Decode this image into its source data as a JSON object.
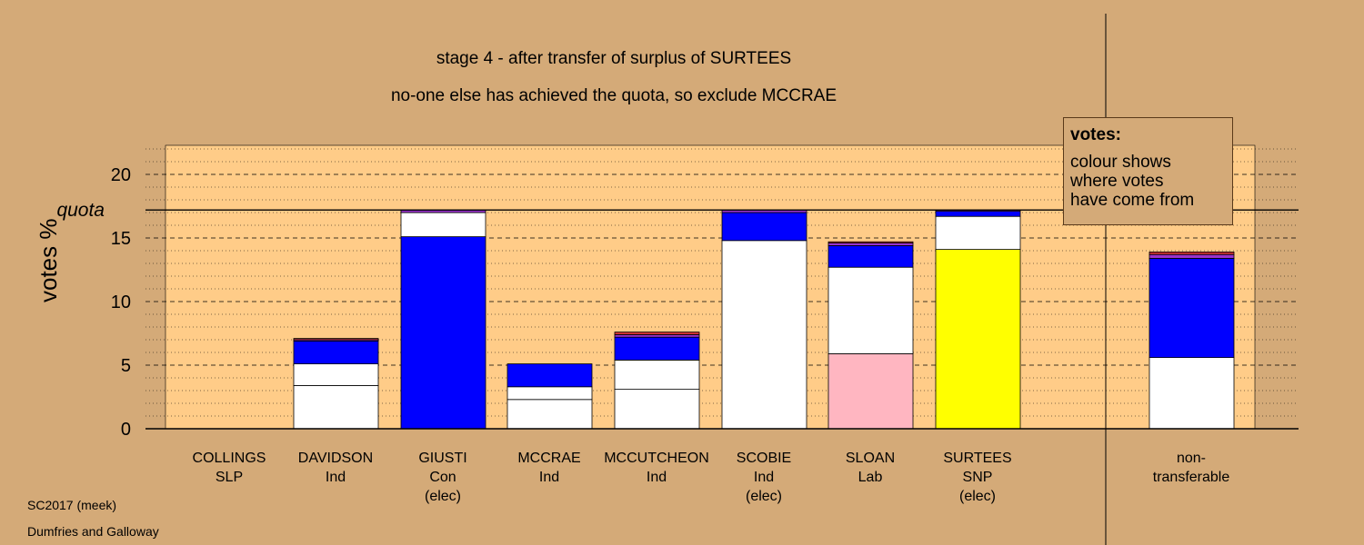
{
  "titles": {
    "line1": "stage 4 - after transfer of surplus of SURTEES",
    "line2": "no-one else has achieved the quota, so exclude MCCRAE"
  },
  "footer": {
    "line1": "SC2017 (meek)",
    "line2": "Dumfries and Galloway"
  },
  "legend": {
    "title": "votes:",
    "body_lines": [
      "colour shows",
      "where votes",
      "have come from"
    ]
  },
  "colors": {
    "background": "#d4aa78",
    "plot_background": "#ffcc88",
    "Ind": "#ffffff",
    "Con": "#0000ff",
    "Lab": "#ffb6c1",
    "SNP": "#ffff00",
    "SLP": "#cc3333",
    "purple": "#9933cc",
    "red": "#cc3333"
  },
  "candidates": [
    {
      "name": "COLLINGS",
      "party": "SLP",
      "note": ""
    },
    {
      "name": "DAVIDSON",
      "party": "Ind",
      "note": ""
    },
    {
      "name": "GIUSTI",
      "party": "Con",
      "note": "(elec)"
    },
    {
      "name": "MCCRAE",
      "party": "Ind",
      "note": ""
    },
    {
      "name": "MCCUTCHEON",
      "party": "Ind",
      "note": ""
    },
    {
      "name": "SCOBIE",
      "party": "Ind",
      "note": "(elec)"
    },
    {
      "name": "SLOAN",
      "party": "Lab",
      "note": ""
    },
    {
      "name": "SURTEES",
      "party": "SNP",
      "note": "(elec)"
    },
    {
      "name": "non-",
      "party": "transferable",
      "note": ""
    }
  ],
  "chart_data": {
    "type": "bar",
    "stacked": true,
    "ylabel": "votes %",
    "ylim": [
      0,
      22.5
    ],
    "yticks": [
      0,
      5,
      10,
      15,
      20
    ],
    "quota": 17.2,
    "quota_label": "quota",
    "grid": "dashed at major ticks, dotted at minor ticks",
    "categories": [
      "COLLINGS",
      "DAVIDSON",
      "GIUSTI",
      "MCCRAE",
      "MCCUTCHEON",
      "SCOBIE",
      "SLOAN",
      "SURTEES",
      "non-transferable"
    ],
    "stacks": [
      [],
      [
        {
          "v": 3.4,
          "c": "white"
        },
        {
          "v": 1.7,
          "c": "white"
        },
        {
          "v": 1.8,
          "c": "blue"
        },
        {
          "v": 0.1,
          "c": "purple"
        },
        {
          "v": 0.1,
          "c": "red"
        }
      ],
      [
        {
          "v": 15.1,
          "c": "blue"
        },
        {
          "v": 1.9,
          "c": "white"
        },
        {
          "v": 0.2,
          "c": "purple"
        }
      ],
      [
        {
          "v": 2.3,
          "c": "white"
        },
        {
          "v": 1.0,
          "c": "white"
        },
        {
          "v": 1.8,
          "c": "blue"
        }
      ],
      [
        {
          "v": 3.1,
          "c": "white"
        },
        {
          "v": 2.3,
          "c": "white"
        },
        {
          "v": 1.8,
          "c": "blue"
        },
        {
          "v": 0.2,
          "c": "purple"
        },
        {
          "v": 0.2,
          "c": "red"
        }
      ],
      [
        {
          "v": 14.8,
          "c": "white"
        },
        {
          "v": 2.2,
          "c": "blue"
        },
        {
          "v": 0.2,
          "c": "purple"
        }
      ],
      [
        {
          "v": 5.9,
          "c": "pink"
        },
        {
          "v": 6.8,
          "c": "white"
        },
        {
          "v": 1.7,
          "c": "blue"
        },
        {
          "v": 0.2,
          "c": "purple"
        },
        {
          "v": 0.1,
          "c": "red"
        }
      ],
      [
        {
          "v": 14.1,
          "c": "yellow"
        },
        {
          "v": 2.6,
          "c": "white"
        },
        {
          "v": 0.4,
          "c": "blue"
        },
        {
          "v": 0.1,
          "c": "purple"
        }
      ],
      [
        {
          "v": 5.6,
          "c": "white"
        },
        {
          "v": 7.8,
          "c": "blue"
        },
        {
          "v": 0.3,
          "c": "purple"
        },
        {
          "v": 0.2,
          "c": "red"
        }
      ]
    ]
  }
}
